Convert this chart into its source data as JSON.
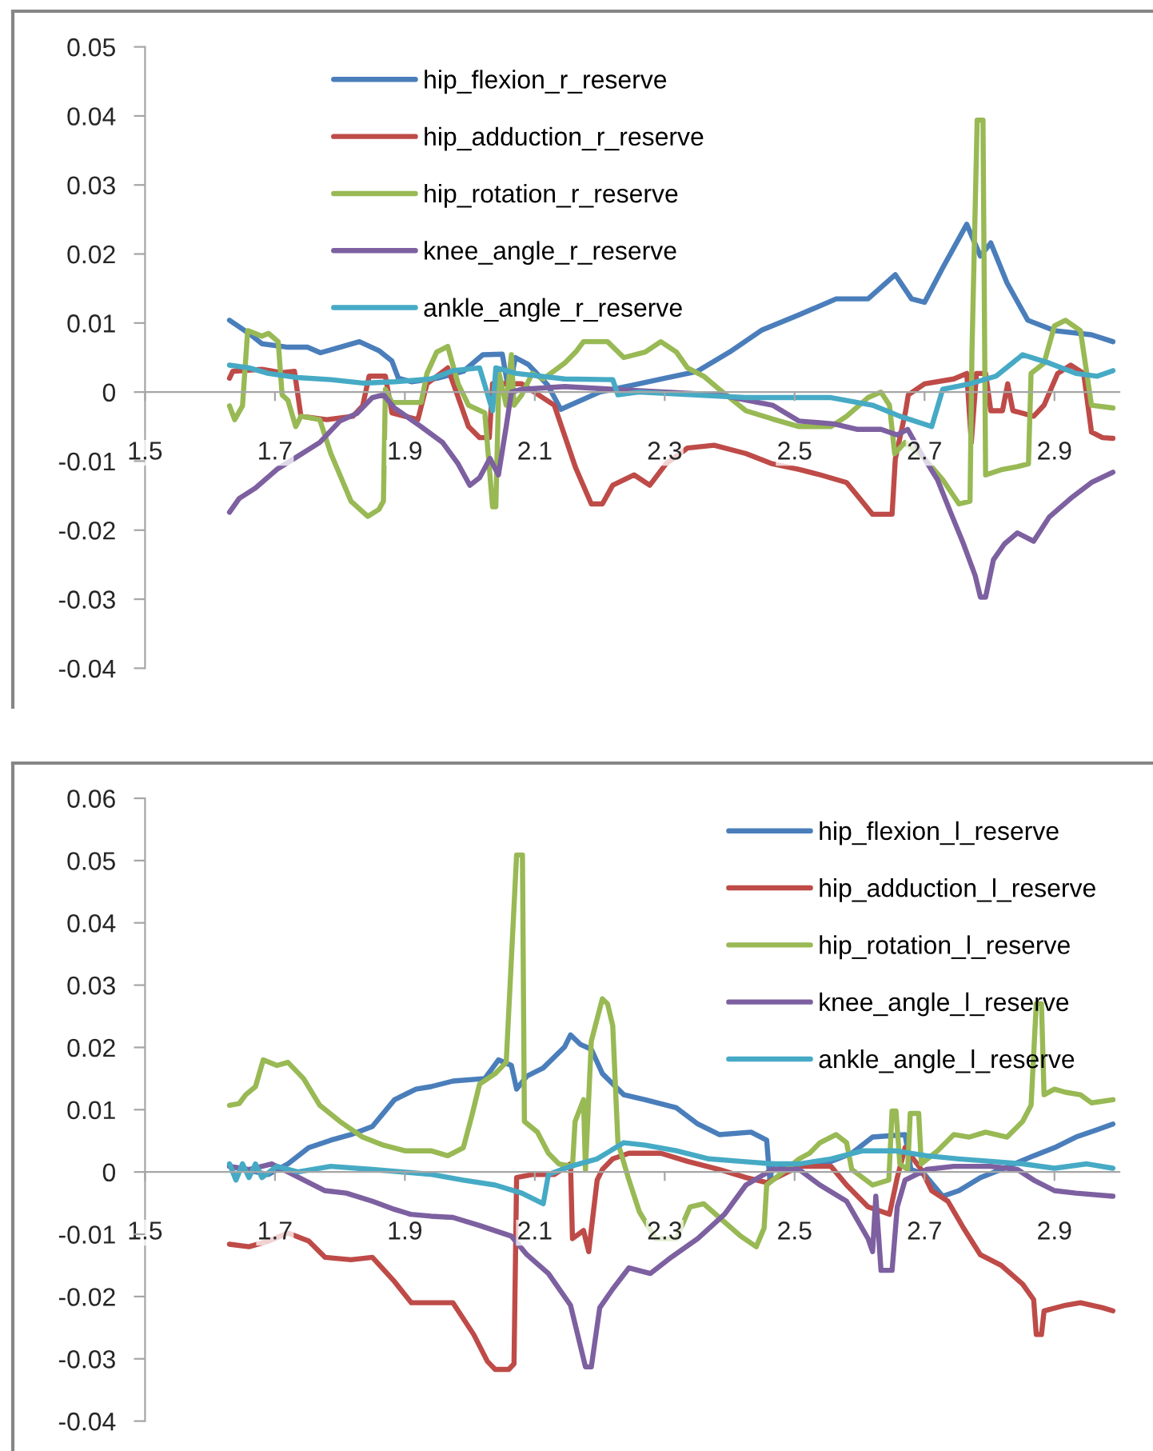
{
  "chart_data": [
    {
      "type": "line",
      "xlim": [
        1.5,
        3.0
      ],
      "xticks": [
        1.5,
        1.7,
        1.9,
        2.1,
        2.3,
        2.5,
        2.7,
        2.9
      ],
      "ylim": [
        -0.04,
        0.05
      ],
      "yticks": [
        -0.04,
        -0.03,
        -0.02,
        -0.01,
        0,
        0.01,
        0.02,
        0.03,
        0.04,
        0.05
      ],
      "grid": false,
      "legend": "top",
      "marker": "none",
      "line_style": "solid",
      "series": [
        {
          "name": "hip_flexion_r_reserve",
          "color": "#4a7ebb",
          "x": [
            1.63,
            1.66,
            1.68,
            1.72,
            1.75,
            1.77,
            1.8,
            1.83,
            1.86,
            1.88,
            1.89,
            1.91,
            1.95,
            1.99,
            2.02,
            2.05,
            2.06,
            2.07,
            2.09,
            2.1,
            2.12,
            2.14,
            2.2,
            2.25,
            2.3,
            2.35,
            2.4,
            2.45,
            2.507,
            2.564,
            2.613,
            2.655,
            2.68,
            2.7,
            2.728,
            2.765,
            2.786,
            2.802,
            2.827,
            2.859,
            2.9,
            2.957,
            2.99
          ],
          "values": [
            0.0104,
            0.0085,
            0.007,
            0.0065,
            0.0065,
            0.0057,
            0.0065,
            0.0073,
            0.006,
            0.0045,
            0.002,
            0.0015,
            0.002,
            0.003,
            0.0054,
            0.0055,
            0.0,
            0.005,
            0.004,
            0.003,
            0.001,
            -0.0025,
            0.0,
            0.001,
            0.002,
            0.003,
            0.0058,
            0.009,
            0.0112,
            0.0135,
            0.0135,
            0.017,
            0.0135,
            0.013,
            0.018,
            0.0243,
            0.0197,
            0.0216,
            0.0158,
            0.0104,
            0.0089,
            0.0083,
            0.0073
          ]
        },
        {
          "name": "hip_adduction_r_reserve",
          "color": "#be4b48",
          "x": [
            1.63,
            1.635,
            1.68,
            1.71,
            1.73,
            1.74,
            1.78,
            1.82,
            1.835,
            1.845,
            1.87,
            1.88,
            1.92,
            1.934,
            1.966,
            1.998,
            2.015,
            2.03,
            2.035,
            2.08,
            2.13,
            2.163,
            2.187,
            2.204,
            2.22,
            2.253,
            2.277,
            2.302,
            2.335,
            2.376,
            2.425,
            2.466,
            2.507,
            2.54,
            2.58,
            2.6,
            2.62,
            2.65,
            2.655,
            2.671,
            2.675,
            2.7,
            2.745,
            2.765,
            2.772,
            2.78,
            2.794,
            2.802,
            2.82,
            2.828,
            2.836,
            2.868,
            2.884,
            2.905,
            2.925,
            2.945,
            2.957,
            2.974,
            2.99
          ],
          "values": [
            0.002,
            0.003,
            0.0033,
            0.0028,
            0.003,
            -0.0035,
            -0.004,
            -0.0035,
            -0.002,
            0.0023,
            0.0023,
            -0.003,
            -0.004,
            0.0012,
            0.0035,
            -0.005,
            -0.0066,
            -0.0066,
            0.0012,
            0.0012,
            -0.0019,
            -0.011,
            -0.0162,
            -0.0162,
            -0.0135,
            -0.012,
            -0.0135,
            -0.0104,
            -0.0081,
            -0.0077,
            -0.0089,
            -0.0104,
            -0.0112,
            -0.012,
            -0.0131,
            -0.0154,
            -0.0177,
            -0.0177,
            -0.0097,
            -0.0027,
            -0.0004,
            0.0012,
            0.0019,
            0.0027,
            -0.0073,
            0.0027,
            0.0027,
            -0.0027,
            -0.0027,
            0.0012,
            -0.0027,
            -0.0035,
            -0.0019,
            0.0027,
            0.0039,
            0.0027,
            -0.0058,
            -0.0066,
            -0.0067
          ]
        },
        {
          "name": "hip_rotation_r_reserve",
          "color": "#98b954",
          "x": [
            1.63,
            1.638,
            1.65,
            1.658,
            1.68,
            1.69,
            1.705,
            1.711,
            1.72,
            1.732,
            1.74,
            1.769,
            1.786,
            1.8,
            1.817,
            1.843,
            1.86,
            1.867,
            1.87,
            1.88,
            1.925,
            1.934,
            1.949,
            1.966,
            1.982,
            1.998,
            2.023,
            2.035,
            2.04,
            2.045,
            2.056,
            2.064,
            2.068,
            2.08,
            2.096,
            2.113,
            2.146,
            2.163,
            2.175,
            2.212,
            2.237,
            2.27,
            2.294,
            2.318,
            2.335,
            2.36,
            2.384,
            2.425,
            2.466,
            2.507,
            2.556,
            2.58,
            2.613,
            2.633,
            2.646,
            2.654,
            2.67,
            2.7,
            2.728,
            2.753,
            2.77,
            2.773,
            2.781,
            2.79,
            2.794,
            2.82,
            2.843,
            2.86,
            2.864,
            2.884,
            2.9,
            2.917,
            2.94,
            2.957,
            2.99
          ],
          "values": [
            -0.002,
            -0.004,
            -0.002,
            0.0089,
            0.0081,
            0.0085,
            0.0073,
            -0.0004,
            -0.0012,
            -0.005,
            -0.0035,
            -0.004,
            -0.0089,
            -0.012,
            -0.0158,
            -0.018,
            -0.017,
            -0.0158,
            0.0004,
            -0.0015,
            -0.0015,
            0.0027,
            0.0058,
            0.0066,
            0.0012,
            -0.0019,
            -0.003,
            -0.0166,
            -0.0166,
            0.0027,
            -0.0019,
            0.0054,
            -0.0019,
            -0.0004,
            0.0027,
            0.0019,
            0.0042,
            0.0058,
            0.0073,
            0.0073,
            0.005,
            0.0058,
            0.0073,
            0.0058,
            0.0035,
            0.0023,
            0.0004,
            -0.0027,
            -0.0039,
            -0.005,
            -0.005,
            -0.0035,
            -0.0008,
            0.0,
            -0.0019,
            -0.0089,
            -0.0073,
            -0.0096,
            -0.0127,
            -0.0162,
            -0.0158,
            0.0058,
            0.0394,
            0.0394,
            -0.012,
            -0.0112,
            -0.0108,
            -0.0104,
            0.0027,
            0.0042,
            0.0096,
            0.0104,
            0.0089,
            -0.0019,
            -0.0023
          ]
        },
        {
          "name": "knee_angle_r_reserve",
          "color": "#7d60a0",
          "x": [
            1.63,
            1.645,
            1.67,
            1.703,
            1.735,
            1.769,
            1.8,
            1.826,
            1.85,
            1.867,
            1.884,
            1.925,
            1.958,
            1.982,
            2.0,
            2.015,
            2.031,
            2.044,
            2.056,
            2.064,
            2.08,
            2.146,
            2.22,
            2.302,
            2.384,
            2.466,
            2.507,
            2.56,
            2.597,
            2.633,
            2.658,
            2.674,
            2.695,
            2.72,
            2.74,
            2.76,
            2.778,
            2.786,
            2.794,
            2.806,
            2.823,
            2.843,
            2.868,
            2.892,
            2.925,
            2.957,
            2.99
          ],
          "values": [
            -0.0174,
            -0.0154,
            -0.0139,
            -0.0112,
            -0.0093,
            -0.0073,
            -0.0042,
            -0.0031,
            -0.0008,
            -0.0004,
            -0.0023,
            -0.005,
            -0.0073,
            -0.0104,
            -0.0135,
            -0.0124,
            -0.0096,
            -0.012,
            -0.005,
            0.0,
            0.0004,
            0.0008,
            0.0004,
            0.0,
            -0.0004,
            -0.0019,
            -0.0042,
            -0.0046,
            -0.0054,
            -0.0054,
            -0.0062,
            -0.0054,
            -0.0089,
            -0.0127,
            -0.0174,
            -0.022,
            -0.0266,
            -0.0297,
            -0.0297,
            -0.0243,
            -0.022,
            -0.0204,
            -0.0216,
            -0.0181,
            -0.0154,
            -0.0131,
            -0.0116
          ]
        },
        {
          "name": "ankle_angle_r_reserve",
          "color": "#46aac5",
          "x": [
            1.63,
            1.66,
            1.69,
            1.735,
            1.786,
            1.835,
            1.884,
            1.94,
            1.974,
            2.015,
            2.035,
            2.04,
            2.072,
            2.146,
            2.22,
            2.228,
            2.26,
            2.343,
            2.425,
            2.507,
            2.556,
            2.62,
            2.662,
            2.711,
            2.728,
            2.77,
            2.81,
            2.851,
            2.892,
            2.933,
            2.966,
            2.99
          ],
          "values": [
            0.0039,
            0.0035,
            0.0027,
            0.0021,
            0.0018,
            0.0013,
            0.0015,
            0.0019,
            0.0031,
            0.0035,
            -0.0027,
            0.0035,
            0.0027,
            0.0019,
            0.0018,
            -0.0004,
            0.0,
            -0.0004,
            -0.0008,
            -0.0008,
            -0.0008,
            -0.0019,
            -0.0035,
            -0.005,
            0.0004,
            0.0012,
            0.0023,
            0.0054,
            0.0042,
            0.0027,
            0.0023,
            0.0031
          ]
        }
      ]
    },
    {
      "type": "line",
      "xlim": [
        1.5,
        3.0
      ],
      "xticks": [
        1.5,
        1.7,
        1.9,
        2.1,
        2.3,
        2.5,
        2.7,
        2.9
      ],
      "ylim": [
        -0.04,
        0.06
      ],
      "yticks": [
        -0.04,
        -0.03,
        -0.02,
        -0.01,
        0,
        0.01,
        0.02,
        0.03,
        0.04,
        0.05,
        0.06
      ],
      "grid": false,
      "legend": "top right",
      "marker": "none",
      "line_style": "solid",
      "series": [
        {
          "name": "hip_flexion_l_reserve",
          "color": "#4a7ebb",
          "x": [
            1.63,
            1.69,
            1.72,
            1.752,
            1.786,
            1.817,
            1.85,
            1.884,
            1.917,
            1.94,
            1.974,
            2.023,
            2.044,
            2.064,
            2.072,
            2.088,
            2.113,
            2.146,
            2.155,
            2.17,
            2.187,
            2.204,
            2.237,
            2.27,
            2.318,
            2.351,
            2.384,
            2.433,
            2.457,
            2.462,
            2.466,
            2.507,
            2.556,
            2.588,
            2.62,
            2.67,
            2.679,
            2.7,
            2.728,
            2.753,
            2.786,
            2.818,
            2.868,
            2.9,
            2.933,
            2.966,
            2.99
          ],
          "values": [
            0.0009,
            -0.0004,
            0.0013,
            0.0039,
            0.0051,
            0.006,
            0.0073,
            0.0116,
            0.0133,
            0.0137,
            0.0146,
            0.015,
            0.018,
            0.0171,
            0.0133,
            0.0154,
            0.0167,
            0.0201,
            0.022,
            0.0205,
            0.0197,
            0.0158,
            0.0124,
            0.0116,
            0.0103,
            0.0077,
            0.006,
            0.0064,
            0.0051,
            -0.0015,
            0.0013,
            0.0009,
            0.0017,
            0.003,
            0.0056,
            0.006,
            0.0004,
            -0.0004,
            -0.0039,
            -0.003,
            -0.0009,
            0.0004,
            0.0026,
            0.0039,
            0.0056,
            0.0068,
            0.0077
          ]
        },
        {
          "name": "hip_adduction_l_reserve",
          "color": "#be4b48",
          "x": [
            1.63,
            1.66,
            1.69,
            1.72,
            1.752,
            1.777,
            1.817,
            1.85,
            1.884,
            1.91,
            1.974,
            2.006,
            2.027,
            2.039,
            2.06,
            2.068,
            2.072,
            2.096,
            2.13,
            2.155,
            2.158,
            2.175,
            2.183,
            2.196,
            2.204,
            2.22,
            2.245,
            2.294,
            2.335,
            2.384,
            2.425,
            2.457,
            2.507,
            2.556,
            2.58,
            2.613,
            2.646,
            2.658,
            2.67,
            2.695,
            2.711,
            2.736,
            2.76,
            2.786,
            2.818,
            2.851,
            2.868,
            2.872,
            2.88,
            2.884,
            2.917,
            2.94,
            2.974,
            2.99
          ],
          "values": [
            -0.0116,
            -0.012,
            -0.0111,
            -0.0098,
            -0.0111,
            -0.0137,
            -0.0141,
            -0.0137,
            -0.0176,
            -0.021,
            -0.021,
            -0.0261,
            -0.0304,
            -0.0317,
            -0.0317,
            -0.0308,
            -0.0009,
            -0.0004,
            -0.0004,
            0.0013,
            -0.0107,
            -0.0094,
            -0.0128,
            -0.0013,
            0.0004,
            0.0021,
            0.003,
            0.003,
            0.0017,
            0.0004,
            -0.0009,
            -0.0017,
            0.0009,
            0.0009,
            -0.0021,
            -0.0056,
            -0.0068,
            -0.0009,
            0.0039,
            0.0004,
            -0.003,
            -0.0047,
            -0.009,
            -0.0133,
            -0.015,
            -0.018,
            -0.0205,
            -0.0261,
            -0.0261,
            -0.0223,
            -0.0214,
            -0.021,
            -0.0218,
            -0.0223
          ]
        },
        {
          "name": "hip_rotation_l_reserve",
          "color": "#98b954",
          "x": [
            1.63,
            1.645,
            1.655,
            1.67,
            1.682,
            1.703,
            1.72,
            1.744,
            1.769,
            1.8,
            1.835,
            1.867,
            1.9,
            1.94,
            1.966,
            1.99,
            2.003,
            2.015,
            2.039,
            2.056,
            2.072,
            2.081,
            2.084,
            2.104,
            2.121,
            2.137,
            2.158,
            2.162,
            2.175,
            2.178,
            2.187,
            2.204,
            2.212,
            2.22,
            2.228,
            2.245,
            2.261,
            2.286,
            2.318,
            2.339,
            2.36,
            2.384,
            2.417,
            2.441,
            2.453,
            2.457,
            2.482,
            2.507,
            2.523,
            2.539,
            2.564,
            2.58,
            2.588,
            2.62,
            2.645,
            2.65,
            2.656,
            2.662,
            2.674,
            2.678,
            2.691,
            2.695,
            2.72,
            2.745,
            2.769,
            2.794,
            2.827,
            2.851,
            2.864,
            2.872,
            2.88,
            2.884,
            2.9,
            2.917,
            2.94,
            2.957,
            2.99
          ],
          "values": [
            0.0107,
            0.011,
            0.0124,
            0.0137,
            0.018,
            0.0171,
            0.0176,
            0.015,
            0.0107,
            0.0081,
            0.0056,
            0.0043,
            0.0034,
            0.0034,
            0.0026,
            0.0039,
            0.009,
            0.0141,
            0.0158,
            0.0176,
            0.0509,
            0.0509,
            0.0081,
            0.0064,
            0.003,
            0.0013,
            0.0009,
            0.0081,
            0.0116,
            0.0004,
            0.021,
            0.0278,
            0.027,
            0.0235,
            0.0047,
            -0.0013,
            -0.0064,
            -0.0107,
            -0.0107,
            -0.0056,
            -0.0051,
            -0.0073,
            -0.0103,
            -0.012,
            -0.009,
            -0.0021,
            0.0,
            0.0021,
            0.003,
            0.0047,
            0.006,
            0.0047,
            0.0004,
            -0.0021,
            -0.0013,
            0.0098,
            0.0098,
            0.0013,
            0.0004,
            0.0094,
            0.0094,
            0.0013,
            0.0034,
            0.006,
            0.0056,
            0.0064,
            0.0056,
            0.0081,
            0.0107,
            0.027,
            0.027,
            0.0124,
            0.0133,
            0.0128,
            0.0124,
            0.0111,
            0.0116
          ]
        },
        {
          "name": "knee_angle_l_reserve",
          "color": "#7d60a0",
          "x": [
            1.63,
            1.66,
            1.695,
            1.72,
            1.752,
            1.777,
            1.81,
            1.85,
            1.884,
            1.909,
            1.94,
            1.974,
            2.015,
            2.064,
            2.088,
            2.121,
            2.155,
            2.178,
            2.187,
            2.2,
            2.22,
            2.245,
            2.278,
            2.31,
            2.351,
            2.392,
            2.425,
            2.466,
            2.507,
            2.539,
            2.58,
            2.613,
            2.62,
            2.625,
            2.633,
            2.65,
            2.658,
            2.67,
            2.703,
            2.745,
            2.802,
            2.843,
            2.868,
            2.9,
            2.933,
            2.99
          ],
          "values": [
            0.0009,
            0.0004,
            0.0013,
            0.0,
            -0.0017,
            -0.003,
            -0.0034,
            -0.0047,
            -0.006,
            -0.0068,
            -0.0071,
            -0.0073,
            -0.0086,
            -0.0103,
            -0.0133,
            -0.0163,
            -0.0214,
            -0.0313,
            -0.0313,
            -0.0218,
            -0.0188,
            -0.0154,
            -0.0163,
            -0.0137,
            -0.0107,
            -0.0068,
            -0.0021,
            0.0004,
            0.0004,
            -0.0021,
            -0.0047,
            -0.0107,
            -0.0128,
            -0.0039,
            -0.0158,
            -0.0158,
            -0.0056,
            -0.0013,
            0.0004,
            0.0009,
            0.0009,
            0.0004,
            -0.0013,
            -0.003,
            -0.0034,
            -0.0039
          ]
        },
        {
          "name": "ankle_angle_l_reserve",
          "color": "#46aac5",
          "x": [
            1.63,
            1.64,
            1.65,
            1.66,
            1.67,
            1.68,
            1.703,
            1.735,
            1.786,
            1.85,
            1.942,
            1.99,
            2.039,
            2.08,
            2.113,
            2.121,
            2.155,
            2.196,
            2.237,
            2.27,
            2.318,
            2.368,
            2.417,
            2.466,
            2.507,
            2.556,
            2.605,
            2.654,
            2.703,
            2.753,
            2.802,
            2.851,
            2.9,
            2.95,
            2.99
          ],
          "values": [
            0.0013,
            -0.0013,
            0.0013,
            -0.0009,
            0.0013,
            -0.0009,
            0.0009,
            0.0,
            0.0009,
            0.0004,
            -0.0004,
            -0.0013,
            -0.0021,
            -0.0034,
            -0.0051,
            -0.0004,
            0.0009,
            0.0021,
            0.0047,
            0.0043,
            0.0034,
            0.0021,
            0.0017,
            0.0013,
            0.0013,
            0.0021,
            0.0034,
            0.0034,
            0.0026,
            0.0021,
            0.0017,
            0.0013,
            0.0006,
            0.0013,
            0.0006
          ]
        }
      ]
    }
  ]
}
